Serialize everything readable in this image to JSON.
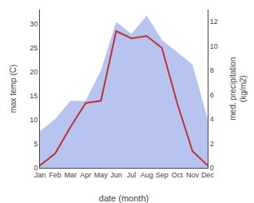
{
  "chart_data": {
    "type": "line",
    "categories": [
      "Jan",
      "Feb",
      "Mar",
      "Apr",
      "May",
      "Jun",
      "Jul",
      "Aug",
      "Sep",
      "Oct",
      "Nov",
      "Dec"
    ],
    "series": [
      {
        "type": "area",
        "axis": "y2",
        "color": "#b8c4f0",
        "values": [
          3.0,
          4.0,
          5.5,
          5.5,
          8.0,
          12.0,
          11.0,
          12.5,
          10.5,
          9.5,
          8.5,
          4.0
        ]
      },
      {
        "type": "line",
        "color": "#c03030",
        "values": [
          0.5,
          3.0,
          8.5,
          13.5,
          14.0,
          28.5,
          27.0,
          27.5,
          25.0,
          13.5,
          3.5,
          0.5
        ]
      }
    ],
    "xlabel": "date (month)",
    "ylabel": "max temp (C)",
    "y2label": "med. precipitation\n(kg/m2)",
    "ylim": [
      0,
      33
    ],
    "yticks": [
      0,
      5,
      10,
      15,
      20,
      25,
      30
    ],
    "y2lim": [
      0,
      13
    ],
    "y2ticks": [
      0,
      2,
      4,
      6,
      8,
      10,
      12
    ],
    "grid": false
  }
}
